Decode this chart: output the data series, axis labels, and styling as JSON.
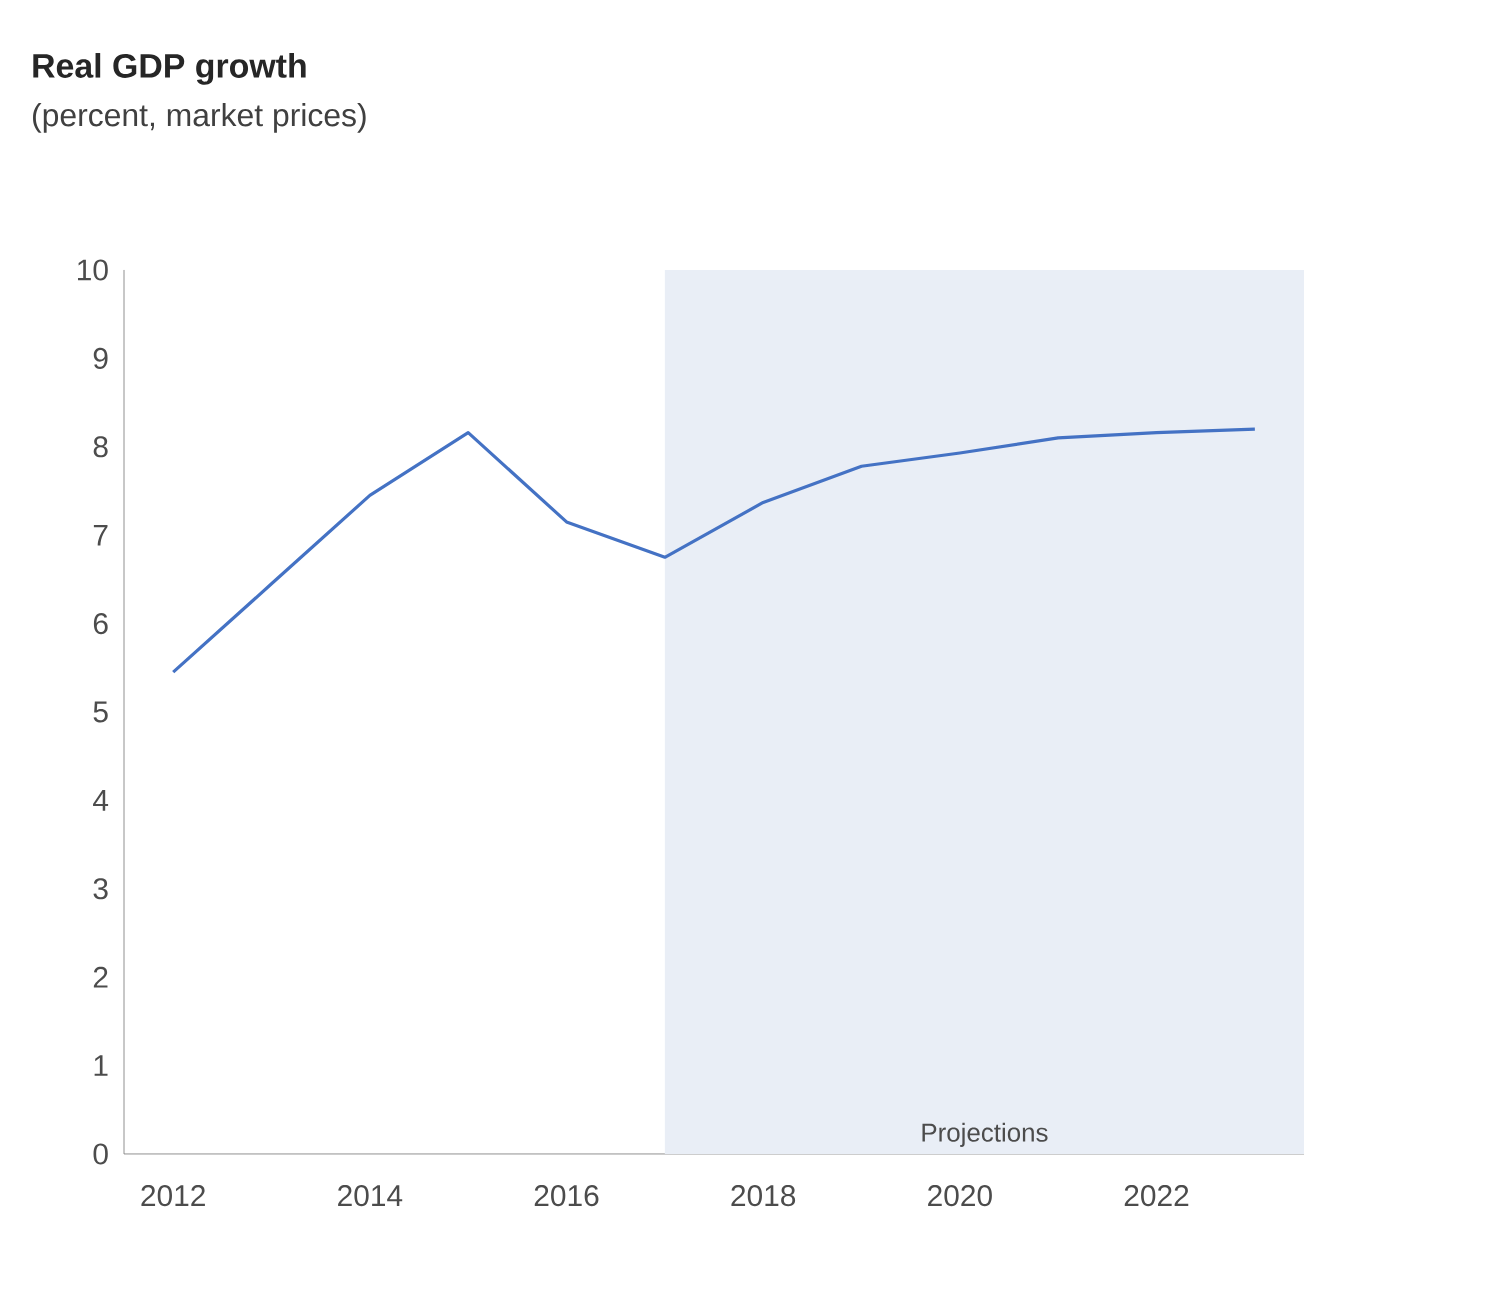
{
  "chart_data": {
    "type": "line",
    "title": "Real GDP growth",
    "subtitle": "(percent, market prices)",
    "x": [
      2012,
      2013,
      2014,
      2015,
      2016,
      2017,
      2018,
      2019,
      2020,
      2021,
      2022,
      2023
    ],
    "series": [
      {
        "color": "#4472c4",
        "values": [
          5.45,
          6.45,
          7.45,
          8.16,
          7.15,
          6.75,
          7.37,
          7.78,
          7.93,
          8.1,
          8.16,
          8.2
        ]
      }
    ],
    "xlim": [
      2011.5,
      2023.5
    ],
    "ylim": [
      0,
      10
    ],
    "xticks": [
      2012,
      2014,
      2016,
      2018,
      2020,
      2022
    ],
    "yticks": [
      0,
      1,
      2,
      3,
      4,
      5,
      6,
      7,
      8,
      9,
      10
    ],
    "bands": [
      {
        "axis": "x",
        "from": 2017,
        "to": 2023.5,
        "label": "Projections",
        "color": "#e9eef6"
      }
    ],
    "grid": false,
    "marker": "none",
    "line_style": "solid"
  }
}
